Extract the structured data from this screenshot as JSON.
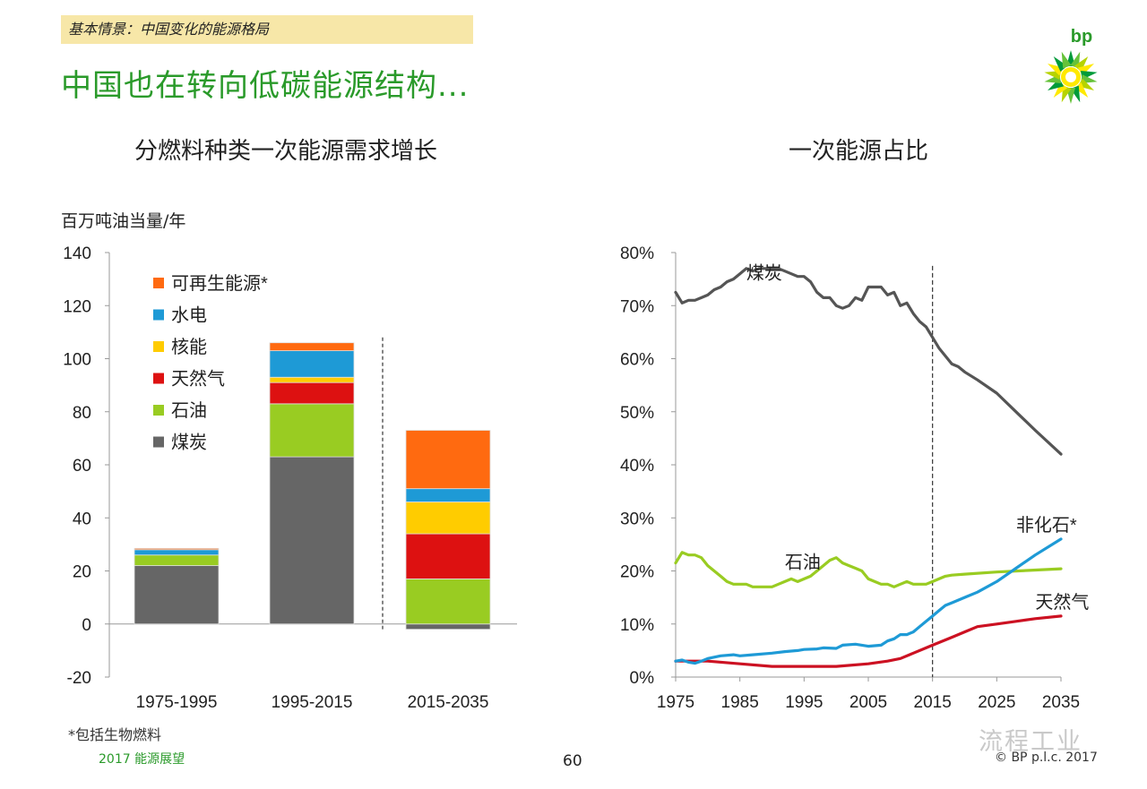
{
  "header": {
    "tag": "基本情景：中国变化的能源格局",
    "headline": "中国也在转向低碳能源结构..."
  },
  "logo": {
    "text": "bp",
    "icon": "bp-helios-icon"
  },
  "footer": {
    "footnote": "*包括生物燃料",
    "outlook": "2017 能源展望",
    "page_number": "60",
    "watermark": "流程工业",
    "copyright": "© BP p.l.c. 2017"
  },
  "chart_data": [
    {
      "type": "bar",
      "stacked": true,
      "title": "分燃料种类一次能源需求增长",
      "ylabel": "百万吨油当量/年",
      "ylim": [
        -20,
        140
      ],
      "yticks": [
        -20,
        0,
        20,
        40,
        60,
        80,
        100,
        120,
        140
      ],
      "categories": [
        "1975-1995",
        "1995-2015",
        "2015-2035"
      ],
      "series": [
        {
          "name": "煤炭",
          "color": "#666666",
          "values": [
            22,
            63,
            -2
          ]
        },
        {
          "name": "石油",
          "color": "#99cc22",
          "values": [
            4,
            20,
            17
          ]
        },
        {
          "name": "天然气",
          "color": "#dd1111",
          "values": [
            0,
            8,
            17
          ]
        },
        {
          "name": "核能",
          "color": "#ffcc00",
          "values": [
            0,
            2,
            12
          ]
        },
        {
          "name": "水电",
          "color": "#1e9ad6",
          "values": [
            2,
            10,
            5
          ]
        },
        {
          "name": "可再生能源*",
          "color": "#ff6a10",
          "values": [
            0.5,
            3,
            22
          ]
        }
      ],
      "legend_order": [
        "可再生能源*",
        "水电",
        "核能",
        "天然气",
        "石油",
        "煤炭"
      ],
      "legend_position": "top-left",
      "divider_after_category": "1995-2015"
    },
    {
      "type": "line",
      "title": "一次能源占比",
      "ylim": [
        0,
        80
      ],
      "yticks": [
        "0%",
        "10%",
        "20%",
        "30%",
        "40%",
        "50%",
        "60%",
        "70%",
        "80%"
      ],
      "xlim": [
        1975,
        2035
      ],
      "xticks": [
        1975,
        1985,
        1995,
        2005,
        2015,
        2025,
        2035
      ],
      "vline": 2015,
      "series": [
        {
          "name": "煤炭",
          "color": "#555555",
          "x": [
            1975,
            1976,
            1977,
            1978,
            1979,
            1980,
            1981,
            1982,
            1983,
            1984,
            1985,
            1986,
            1987,
            1988,
            1989,
            1990,
            1991,
            1992,
            1993,
            1994,
            1995,
            1996,
            1997,
            1998,
            1999,
            2000,
            2001,
            2002,
            2003,
            2004,
            2005,
            2006,
            2007,
            2008,
            2009,
            2010,
            2011,
            2012,
            2013,
            2014,
            2015,
            2016,
            2017,
            2018,
            2019,
            2020,
            2022,
            2025,
            2028,
            2031,
            2035
          ],
          "y": [
            72.5,
            70.5,
            71,
            71,
            71.5,
            72,
            73,
            73.5,
            74.5,
            75,
            76,
            77,
            76.5,
            77,
            77,
            77,
            77,
            76.5,
            76,
            75.5,
            75.5,
            74.5,
            72.5,
            71.5,
            71.5,
            70,
            69.5,
            70,
            71.5,
            71,
            73.5,
            73.5,
            73.5,
            72,
            72.5,
            70,
            70.5,
            68.5,
            67,
            66,
            64,
            62,
            60.5,
            59,
            58.5,
            57.5,
            56,
            53.5,
            50,
            46.5,
            42
          ]
        },
        {
          "name": "石油",
          "color": "#99cc22",
          "x": [
            1975,
            1976,
            1977,
            1978,
            1979,
            1980,
            1981,
            1982,
            1983,
            1984,
            1985,
            1986,
            1987,
            1988,
            1989,
            1990,
            1991,
            1992,
            1993,
            1994,
            1995,
            1996,
            1997,
            1998,
            1999,
            2000,
            2001,
            2002,
            2003,
            2004,
            2005,
            2006,
            2007,
            2008,
            2009,
            2010,
            2011,
            2012,
            2013,
            2014,
            2015,
            2016,
            2017,
            2018,
            2020,
            2025,
            2030,
            2035
          ],
          "y": [
            21.5,
            23.5,
            23,
            23,
            22.5,
            21,
            20,
            19,
            18,
            17.5,
            17.5,
            17.5,
            17,
            17,
            17,
            17,
            17.5,
            18,
            18.5,
            18,
            18.5,
            19,
            20,
            21,
            22,
            22.5,
            21.5,
            21,
            20.5,
            20,
            18.5,
            18,
            17.5,
            17.5,
            17,
            17.5,
            18,
            17.5,
            17.5,
            17.5,
            18,
            18.5,
            19,
            19.2,
            19.4,
            19.8,
            20.1,
            20.4
          ]
        },
        {
          "name": "天然气",
          "color": "#cc1122",
          "x": [
            1975,
            1980,
            1985,
            1990,
            1995,
            2000,
            2005,
            2008,
            2010,
            2012,
            2014,
            2015,
            2016,
            2018,
            2020,
            2022,
            2025,
            2028,
            2031,
            2035
          ],
          "y": [
            3,
            3,
            2.5,
            2,
            2,
            2,
            2.5,
            3,
            3.5,
            4.5,
            5.5,
            6,
            6.5,
            7.5,
            8.5,
            9.5,
            10,
            10.5,
            11,
            11.5
          ]
        },
        {
          "name": "非化石*",
          "color": "#1e9ad6",
          "x": [
            1975,
            1976,
            1977,
            1978,
            1979,
            1980,
            1982,
            1984,
            1985,
            1987,
            1990,
            1992,
            1994,
            1995,
            1997,
            1998,
            2000,
            2001,
            2003,
            2004,
            2005,
            2007,
            2008,
            2009,
            2010,
            2011,
            2012,
            2013,
            2014,
            2015,
            2016,
            2017,
            2018,
            2020,
            2022,
            2025,
            2028,
            2031,
            2035
          ],
          "y": [
            3,
            3.2,
            2.8,
            2.6,
            3,
            3.5,
            4,
            4.2,
            4,
            4.2,
            4.5,
            4.8,
            5,
            5.2,
            5.3,
            5.5,
            5.4,
            6,
            6.2,
            6,
            5.8,
            6,
            6.8,
            7.2,
            8,
            8,
            8.5,
            9.5,
            10.5,
            11.5,
            12.5,
            13.5,
            14,
            15,
            16,
            18,
            20.5,
            23,
            26
          ]
        }
      ],
      "annotations": [
        {
          "text": "煤炭",
          "x": 1986,
          "y": 75
        },
        {
          "text": "石油",
          "x": 1992,
          "y": 20.5
        },
        {
          "text": "非化石*",
          "x": 2028,
          "y": 27.5
        },
        {
          "text": "天然气",
          "x": 2031,
          "y": 13
        }
      ]
    }
  ]
}
